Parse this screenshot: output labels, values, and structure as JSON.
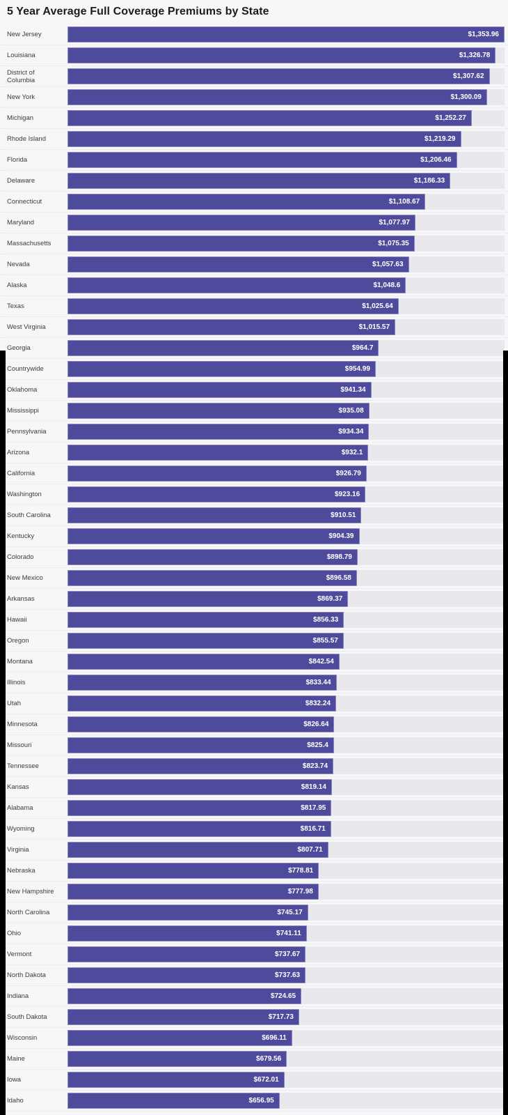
{
  "chart_data": {
    "type": "bar",
    "orientation": "horizontal",
    "title": "5 Year Average Full Coverage Premiums by State",
    "axis_max": 1353.96,
    "grid": false,
    "legend": "none",
    "categories": [
      "New Jersey",
      "Louisiana",
      "District of Columbia",
      "New York",
      "Michigan",
      "Rhode Island",
      "Florida",
      "Delaware",
      "Connecticut",
      "Maryland",
      "Massachusetts",
      "Nevada",
      "Alaska",
      "Texas",
      "West Virginia",
      "Georgia",
      "Countrywide",
      "Oklahoma",
      "Mississippi",
      "Pennsylvania",
      "Arizona",
      "California",
      "Washington",
      "South Carolina",
      "Kentucky",
      "Colorado",
      "New Mexico",
      "Arkansas",
      "Hawaii",
      "Oregon",
      "Montana",
      "Illinois",
      "Utah",
      "Minnesota",
      "Missouri",
      "Tennessee",
      "Kansas",
      "Alabama",
      "Wyoming",
      "Virginia",
      "Nebraska",
      "New Hampshire",
      "North Carolina",
      "Ohio",
      "Vermont",
      "North Dakota",
      "Indiana",
      "South Dakota",
      "Wisconsin",
      "Maine",
      "Iowa",
      "Idaho"
    ],
    "values": [
      1353.96,
      1326.78,
      1307.62,
      1300.09,
      1252.27,
      1219.29,
      1206.46,
      1186.33,
      1108.67,
      1077.97,
      1075.35,
      1057.63,
      1048.6,
      1025.64,
      1015.57,
      964.7,
      954.99,
      941.34,
      935.08,
      934.34,
      932.1,
      926.79,
      923.16,
      910.51,
      904.39,
      898.79,
      896.58,
      869.37,
      856.33,
      855.57,
      842.54,
      833.44,
      832.24,
      826.64,
      825.4,
      823.74,
      819.14,
      817.95,
      816.71,
      807.71,
      778.81,
      777.98,
      745.17,
      741.11,
      737.67,
      737.63,
      724.65,
      717.73,
      696.11,
      679.56,
      672.01,
      656.95
    ],
    "value_labels": [
      "$1,353.96",
      "$1,326.78",
      "$1,307.62",
      "$1,300.09",
      "$1,252.27",
      "$1,219.29",
      "$1,206.46",
      "$1,186.33",
      "$1,108.67",
      "$1,077.97",
      "$1,075.35",
      "$1,057.63",
      "$1,048.6",
      "$1,025.64",
      "$1,015.57",
      "$964.7",
      "$954.99",
      "$941.34",
      "$935.08",
      "$934.34",
      "$932.1",
      "$926.79",
      "$923.16",
      "$910.51",
      "$904.39",
      "$898.79",
      "$896.58",
      "$869.37",
      "$856.33",
      "$855.57",
      "$842.54",
      "$833.44",
      "$832.24",
      "$826.64",
      "$825.4",
      "$823.74",
      "$819.14",
      "$817.95",
      "$816.71",
      "$807.71",
      "$778.81",
      "$777.98",
      "$745.17",
      "$741.11",
      "$737.67",
      "$737.63",
      "$724.65",
      "$717.73",
      "$696.11",
      "$679.56",
      "$672.01",
      "$656.95"
    ],
    "colors": {
      "bar": "#4f4b9c",
      "track": "#e9e9ed",
      "background": "#f7f7f9",
      "value_text": "#ffffff",
      "label_text": "#3c3c3c",
      "title_text": "#1c1c1e"
    }
  }
}
